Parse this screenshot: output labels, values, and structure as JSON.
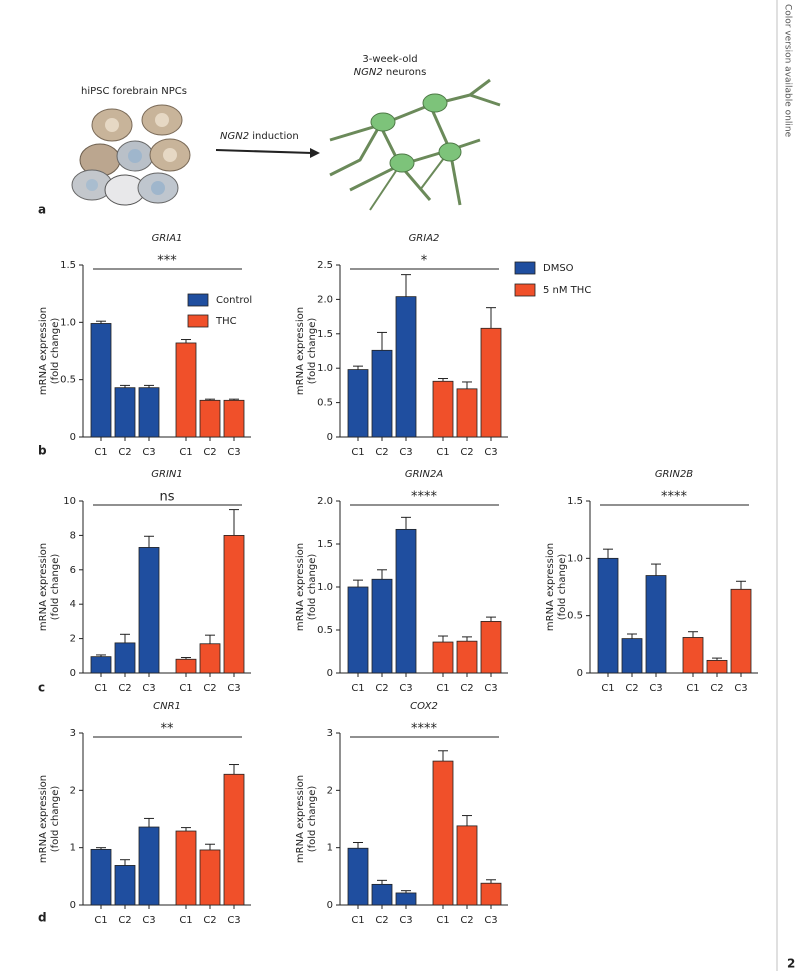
{
  "side_note": "Color version available online",
  "page_number": "2",
  "panels": [
    "a",
    "b",
    "c",
    "d"
  ],
  "illustration": {
    "left_label": "hiPSC forebrain NPCs",
    "arrow_label": [
      "NGN2",
      " induction"
    ],
    "right_label": [
      "3-week-old",
      "NGN2",
      " neurons"
    ]
  },
  "chart_data": [
    {
      "type": "bar",
      "title": "GRIA1",
      "ylabel": [
        "mRNA expression",
        "(fold change)"
      ],
      "categories": [
        "C1",
        "C2",
        "C3",
        "C1",
        "C2",
        "C3"
      ],
      "values": [
        0.99,
        0.43,
        0.43,
        0.82,
        0.32,
        0.32
      ],
      "errors": [
        0.02,
        0.02,
        0.02,
        0.03,
        0.01,
        0.01
      ],
      "colors": [
        "#1f4e9f",
        "#1f4e9f",
        "#1f4e9f",
        "#f0502a",
        "#f0502a",
        "#f0502a"
      ],
      "ylim": [
        0,
        1.5
      ],
      "yticks": [
        0,
        0.5,
        {
          "value": 1,
          "label": "1.0"
        },
        1.5
      ],
      "annotation": "***",
      "legend": [
        {
          "name": "Control",
          "color": "#1f4e9f"
        },
        {
          "name": "THC",
          "color": "#f0502a"
        }
      ]
    },
    {
      "type": "bar",
      "title": "GRIA2",
      "ylabel": [
        "mRNA expression",
        "(fold change)"
      ],
      "categories": [
        "C1",
        "C2",
        "C3",
        "C1",
        "C2",
        "C3"
      ],
      "values": [
        0.98,
        1.26,
        2.04,
        0.81,
        0.7,
        1.58
      ],
      "errors": [
        0.05,
        0.26,
        0.32,
        0.04,
        0.1,
        0.3
      ],
      "colors": [
        "#1f4e9f",
        "#1f4e9f",
        "#1f4e9f",
        "#f0502a",
        "#f0502a",
        "#f0502a"
      ],
      "ylim": [
        0,
        2.5
      ],
      "yticks": [
        0,
        0.5,
        {
          "value": 1,
          "label": "1.0"
        },
        1.5,
        {
          "value": 2,
          "label": "2.0"
        },
        2.5
      ],
      "annotation": "*",
      "legend": [
        {
          "name": "DMSO",
          "color": "#1f4e9f"
        },
        {
          "name": "5 nM THC",
          "color": "#f0502a"
        }
      ]
    },
    {
      "type": "bar",
      "title": "GRIN1",
      "ylabel": [
        "mRNA expression",
        "(fold change)"
      ],
      "categories": [
        "C1",
        "C2",
        "C3",
        "C1",
        "C2",
        "C3"
      ],
      "values": [
        0.95,
        1.75,
        7.3,
        0.8,
        1.7,
        8.0
      ],
      "errors": [
        0.1,
        0.5,
        0.65,
        0.1,
        0.5,
        1.5
      ],
      "colors": [
        "#1f4e9f",
        "#1f4e9f",
        "#1f4e9f",
        "#f0502a",
        "#f0502a",
        "#f0502a"
      ],
      "ylim": [
        0,
        10
      ],
      "yticks": [
        0,
        2,
        4,
        6,
        8,
        10
      ],
      "annotation": "ns"
    },
    {
      "type": "bar",
      "title": "GRIN2A",
      "ylabel": [
        "mRNA expression",
        "(fold change)"
      ],
      "categories": [
        "C1",
        "C2",
        "C3",
        "C1",
        "C2",
        "C3"
      ],
      "values": [
        1.0,
        1.09,
        1.67,
        0.36,
        0.37,
        0.6
      ],
      "errors": [
        0.08,
        0.11,
        0.14,
        0.07,
        0.05,
        0.05
      ],
      "colors": [
        "#1f4e9f",
        "#1f4e9f",
        "#1f4e9f",
        "#f0502a",
        "#f0502a",
        "#f0502a"
      ],
      "ylim": [
        0,
        2
      ],
      "yticks": [
        0,
        0.5,
        {
          "value": 1,
          "label": "1.0"
        },
        1.5,
        {
          "value": 2,
          "label": "2.0"
        }
      ],
      "annotation": "****"
    },
    {
      "type": "bar",
      "title": "GRIN2B",
      "ylabel": [
        "mRNA expression",
        "(fold change)"
      ],
      "categories": [
        "C1",
        "C2",
        "C3",
        "C1",
        "C2",
        "C3"
      ],
      "values": [
        1.0,
        0.3,
        0.85,
        0.31,
        0.11,
        0.73
      ],
      "errors": [
        0.08,
        0.04,
        0.1,
        0.05,
        0.02,
        0.07
      ],
      "colors": [
        "#1f4e9f",
        "#1f4e9f",
        "#1f4e9f",
        "#f0502a",
        "#f0502a",
        "#f0502a"
      ],
      "ylim": [
        0,
        1.5
      ],
      "yticks": [
        0,
        0.5,
        {
          "value": 1,
          "label": "1.0"
        },
        1.5
      ],
      "annotation": "****"
    },
    {
      "type": "bar",
      "title": "CNR1",
      "ylabel": [
        "mRNA expression",
        "(fold change)"
      ],
      "categories": [
        "C1",
        "C2",
        "C3",
        "C1",
        "C2",
        "C3"
      ],
      "values": [
        0.97,
        0.69,
        1.36,
        1.29,
        0.96,
        2.28
      ],
      "errors": [
        0.03,
        0.1,
        0.15,
        0.06,
        0.1,
        0.17
      ],
      "colors": [
        "#1f4e9f",
        "#1f4e9f",
        "#1f4e9f",
        "#f0502a",
        "#f0502a",
        "#f0502a"
      ],
      "ylim": [
        0,
        3
      ],
      "yticks": [
        0,
        1,
        2,
        3
      ],
      "annotation": "**"
    },
    {
      "type": "bar",
      "title": "COX2",
      "ylabel": [
        "mRNA expression",
        "(fold change)"
      ],
      "categories": [
        "C1",
        "C2",
        "C3",
        "C1",
        "C2",
        "C3"
      ],
      "values": [
        0.99,
        0.36,
        0.21,
        2.51,
        1.38,
        0.38
      ],
      "errors": [
        0.1,
        0.07,
        0.04,
        0.18,
        0.18,
        0.06
      ],
      "colors": [
        "#1f4e9f",
        "#1f4e9f",
        "#1f4e9f",
        "#f0502a",
        "#f0502a",
        "#f0502a"
      ],
      "ylim": [
        0,
        3
      ],
      "yticks": [
        0,
        1,
        2,
        3
      ],
      "annotation": "****"
    }
  ]
}
